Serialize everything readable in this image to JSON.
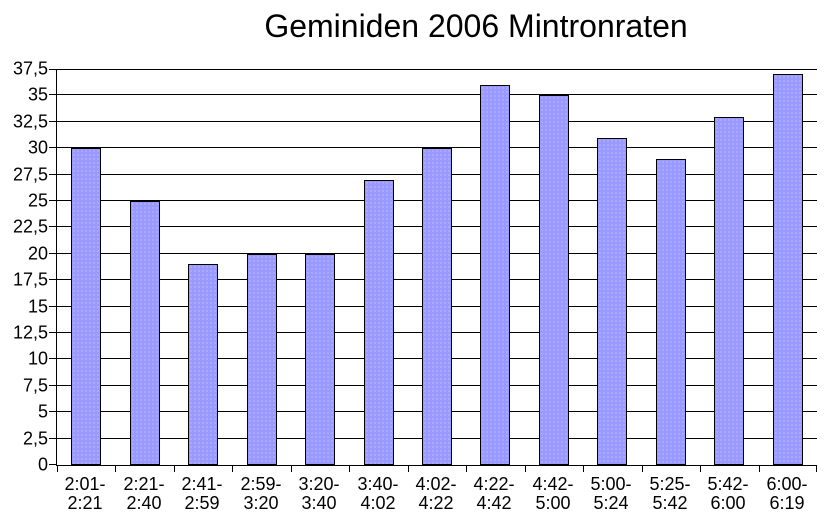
{
  "chart_data": {
    "type": "bar",
    "title": "Geminiden 2006 Mintronraten",
    "categories": [
      "2:01-2:21",
      "2:21-2:40",
      "2:41-2:59",
      "2:59-3:20",
      "3:20-3:40",
      "3:40-4:02",
      "4:02-4:22",
      "4:22-4:42",
      "4:42-5:00",
      "5:00-5:24",
      "5:25-5:42",
      "5:42-6:00",
      "6:00-6:19"
    ],
    "x_tick_lines": [
      [
        "2:01-",
        "2:21"
      ],
      [
        "2:21-",
        "2:40"
      ],
      [
        "2:41-",
        "2:59"
      ],
      [
        "2:59-",
        "3:20"
      ],
      [
        "3:20-",
        "3:40"
      ],
      [
        "3:40-",
        "4:02"
      ],
      [
        "4:02-",
        "4:22"
      ],
      [
        "4:22-",
        "4:42"
      ],
      [
        "4:42-",
        "5:00"
      ],
      [
        "5:00-",
        "5:24"
      ],
      [
        "5:25-",
        "5:42"
      ],
      [
        "5:42-",
        "6:00"
      ],
      [
        "6:00-",
        "6:19"
      ]
    ],
    "values": [
      30,
      25,
      19,
      20,
      20,
      27,
      30,
      36,
      35,
      31,
      29,
      33,
      37
    ],
    "xlabel": "",
    "ylabel": "",
    "ylim": [
      0,
      37.5
    ],
    "y_step": 2.5,
    "y_ticks": [
      {
        "value": 0,
        "label": "0"
      },
      {
        "value": 2.5,
        "label": "2,5"
      },
      {
        "value": 5,
        "label": "5"
      },
      {
        "value": 7.5,
        "label": "7,5"
      },
      {
        "value": 10,
        "label": "10"
      },
      {
        "value": 12.5,
        "label": "12,5"
      },
      {
        "value": 15,
        "label": "15"
      },
      {
        "value": 17.5,
        "label": "17,5"
      },
      {
        "value": 20,
        "label": "20"
      },
      {
        "value": 22.5,
        "label": "22,5"
      },
      {
        "value": 25,
        "label": "25"
      },
      {
        "value": 27.5,
        "label": "27,5"
      },
      {
        "value": 30,
        "label": "30"
      },
      {
        "value": 32.5,
        "label": "32,5"
      },
      {
        "value": 35,
        "label": "35"
      },
      {
        "value": 37.5,
        "label": "37,5"
      }
    ],
    "grid": true,
    "legend_position": "none",
    "bar_color": "#9999ff",
    "bar_border_color": "#000000",
    "grid_color": "#000000",
    "background_color": "#ffffff",
    "text_color": "#000000"
  }
}
